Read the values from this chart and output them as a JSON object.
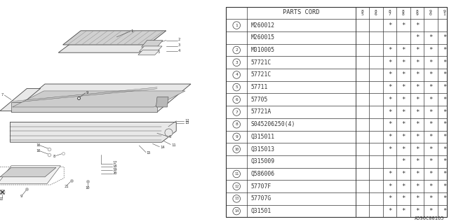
{
  "diagram_code": "A590C00165",
  "bg_color": "#ffffff",
  "col_headers": [
    "8\n5",
    "8\n6",
    "8\n7",
    "8\n8",
    "8\n9",
    "9\n0",
    "9\n1"
  ],
  "rows": [
    {
      "num": "1",
      "part": "M260012",
      "marks": [
        0,
        0,
        1,
        1,
        1,
        0,
        0
      ]
    },
    {
      "num": "",
      "part": "M260015",
      "marks": [
        0,
        0,
        0,
        0,
        1,
        1,
        1
      ]
    },
    {
      "num": "2",
      "part": "M010005",
      "marks": [
        0,
        0,
        1,
        1,
        1,
        1,
        1
      ]
    },
    {
      "num": "3",
      "part": "57721C",
      "marks": [
        0,
        0,
        1,
        1,
        1,
        1,
        1
      ]
    },
    {
      "num": "4",
      "part": "57721C",
      "marks": [
        0,
        0,
        1,
        1,
        1,
        1,
        1
      ]
    },
    {
      "num": "5",
      "part": "57711",
      "marks": [
        0,
        0,
        1,
        1,
        1,
        1,
        1
      ]
    },
    {
      "num": "6",
      "part": "57705",
      "marks": [
        0,
        0,
        1,
        1,
        1,
        1,
        1
      ]
    },
    {
      "num": "7",
      "part": "57721A",
      "marks": [
        0,
        0,
        1,
        1,
        1,
        1,
        1
      ]
    },
    {
      "num": "8",
      "part": "S045206250(4)",
      "marks": [
        0,
        0,
        1,
        1,
        1,
        1,
        1
      ]
    },
    {
      "num": "9",
      "part": "Q315011",
      "marks": [
        0,
        0,
        1,
        1,
        1,
        1,
        1
      ]
    },
    {
      "num": "10",
      "part": "Q315013",
      "marks": [
        0,
        0,
        1,
        1,
        1,
        1,
        1
      ]
    },
    {
      "num": "",
      "part": "Q315009",
      "marks": [
        0,
        0,
        0,
        1,
        1,
        1,
        1
      ]
    },
    {
      "num": "11",
      "part": "Q586006",
      "marks": [
        0,
        0,
        1,
        1,
        1,
        1,
        1
      ]
    },
    {
      "num": "12",
      "part": "57707F",
      "marks": [
        0,
        0,
        1,
        1,
        1,
        1,
        1
      ]
    },
    {
      "num": "13",
      "part": "57707G",
      "marks": [
        0,
        0,
        1,
        1,
        1,
        1,
        1
      ]
    },
    {
      "num": "14",
      "part": "Q31501",
      "marks": [
        0,
        0,
        1,
        1,
        1,
        1,
        1
      ]
    }
  ],
  "line_color": "#555555",
  "text_color": "#333333",
  "font_size": 5.8,
  "header_font_size": 6.2
}
